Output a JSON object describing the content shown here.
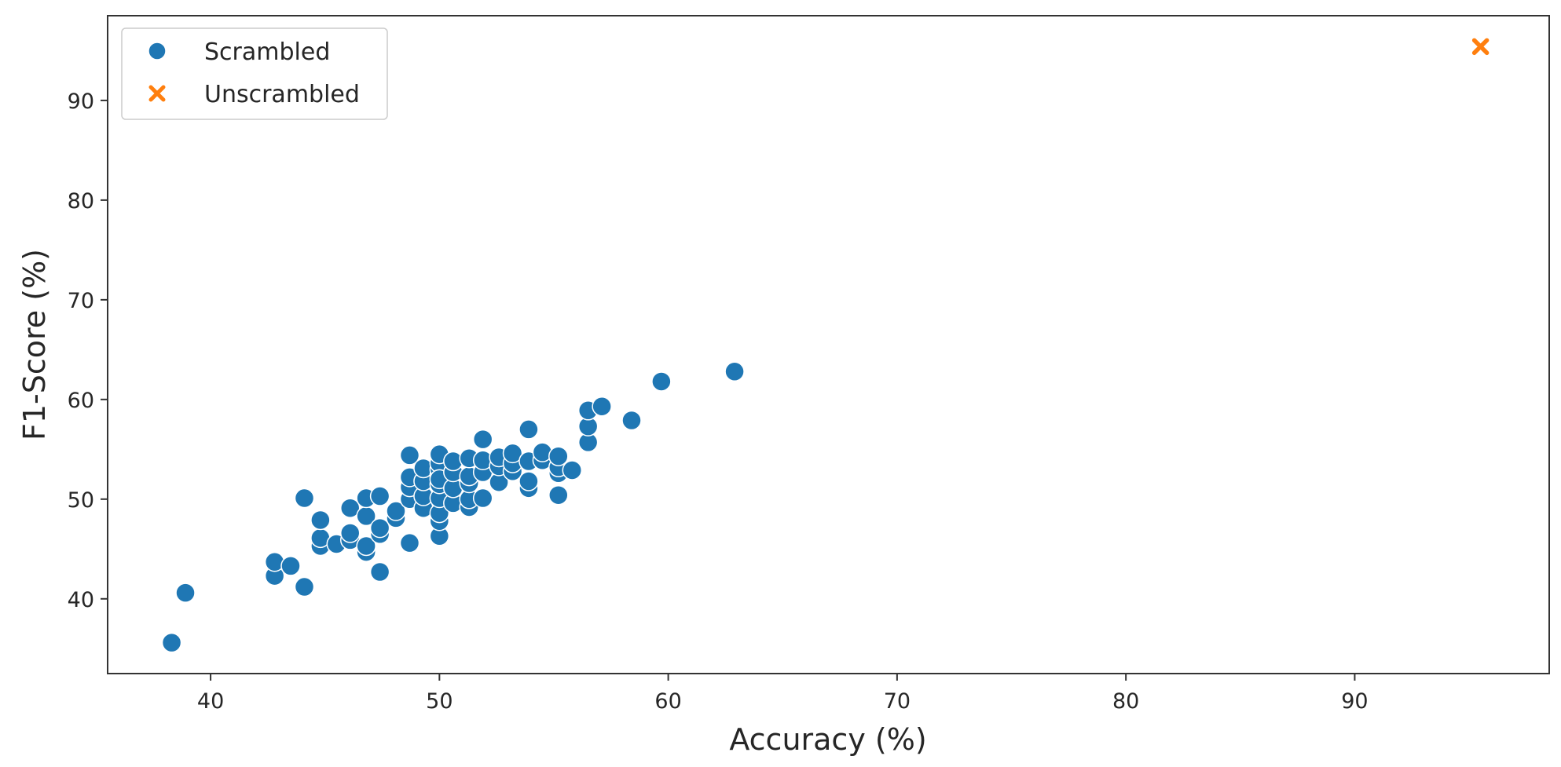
{
  "chart_data": {
    "type": "scatter",
    "xlabel": "Accuracy (%)",
    "ylabel": "F1-Score (%)",
    "xlim": [
      35.5,
      98.5
    ],
    "ylim": [
      32.5,
      98.5
    ],
    "xticks": [
      40,
      50,
      60,
      70,
      80,
      90
    ],
    "yticks": [
      40,
      50,
      60,
      70,
      80,
      90
    ],
    "grid": false,
    "legend_position": "top-left",
    "series": [
      {
        "name": "Scrambled",
        "marker": "circle",
        "color": "#1f77b4",
        "x": [
          38.3,
          38.9,
          42.8,
          42.8,
          43.5,
          44.1,
          44.1,
          44.8,
          44.8,
          44.8,
          45.5,
          46.1,
          46.1,
          46.1,
          46.8,
          46.8,
          46.8,
          46.8,
          47.4,
          47.4,
          47.4,
          47.4,
          48.1,
          48.1,
          48.7,
          48.7,
          48.7,
          48.7,
          48.7,
          49.3,
          49.3,
          49.3,
          49.3,
          50.0,
          50.0,
          50.0,
          50.0,
          50.0,
          50.0,
          50.0,
          50.0,
          50.0,
          50.0,
          50.6,
          50.6,
          50.6,
          50.6,
          51.3,
          51.3,
          51.3,
          51.3,
          51.3,
          51.9,
          51.9,
          51.9,
          51.9,
          52.6,
          52.6,
          52.6,
          53.2,
          53.2,
          53.2,
          53.9,
          53.9,
          53.9,
          53.9,
          54.5,
          54.5,
          55.2,
          55.2,
          55.2,
          55.2,
          55.8,
          56.5,
          56.5,
          56.5,
          57.1,
          58.4,
          59.7,
          62.9
        ],
        "y": [
          35.6,
          40.6,
          42.3,
          43.7,
          43.3,
          41.2,
          50.1,
          45.3,
          46.1,
          47.9,
          45.5,
          45.9,
          46.6,
          49.1,
          44.7,
          45.3,
          48.3,
          50.1,
          42.7,
          46.5,
          47.1,
          50.3,
          48.1,
          48.8,
          45.6,
          50.0,
          51.2,
          52.2,
          54.4,
          49.1,
          50.3,
          51.8,
          53.1,
          46.3,
          47.8,
          48.6,
          50.1,
          51.5,
          52.4,
          53.0,
          53.6,
          54.5,
          52.0,
          49.6,
          51.1,
          52.7,
          53.8,
          49.2,
          50.0,
          51.6,
          52.3,
          54.1,
          50.1,
          52.7,
          53.9,
          56.0,
          51.7,
          53.3,
          54.2,
          52.8,
          53.6,
          54.6,
          51.1,
          51.8,
          53.8,
          57.0,
          53.9,
          54.7,
          50.4,
          52.6,
          53.2,
          54.3,
          52.9,
          55.7,
          57.3,
          58.9,
          59.3,
          57.9,
          61.8,
          62.8
        ]
      },
      {
        "name": "Unscrambled",
        "marker": "x",
        "color": "#ff7f0e",
        "x": [
          95.5
        ],
        "y": [
          95.4
        ]
      }
    ]
  }
}
